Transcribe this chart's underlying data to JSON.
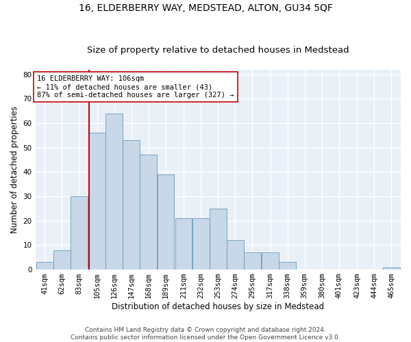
{
  "title": "16, ELDERBERRY WAY, MEDSTEAD, ALTON, GU34 5QF",
  "subtitle": "Size of property relative to detached houses in Medstead",
  "xlabel": "Distribution of detached houses by size in Medstead",
  "ylabel": "Number of detached properties",
  "bins": [
    41,
    62,
    83,
    105,
    126,
    147,
    168,
    189,
    211,
    232,
    253,
    274,
    295,
    317,
    338,
    359,
    380,
    401,
    423,
    444,
    465
  ],
  "counts": [
    3,
    8,
    30,
    56,
    64,
    53,
    47,
    39,
    21,
    21,
    25,
    12,
    7,
    7,
    3,
    0,
    0,
    0,
    0,
    0,
    1
  ],
  "bar_color": "#c8d8e8",
  "bar_edge_color": "#6699bb",
  "property_size": 106,
  "red_line_color": "#cc0000",
  "annotation_line1": "16 ELDERBERRY WAY: 106sqm",
  "annotation_line2": "← 11% of detached houses are smaller (43)",
  "annotation_line3": "87% of semi-detached houses are larger (327) →",
  "annotation_box_color": "white",
  "annotation_box_edge_color": "#cc0000",
  "ylim": [
    0,
    82
  ],
  "yticks": [
    0,
    10,
    20,
    30,
    40,
    50,
    60,
    70,
    80
  ],
  "footer_text": "Contains HM Land Registry data © Crown copyright and database right 2024.\nContains public sector information licensed under the Open Government Licence v3.0.",
  "background_color": "#eaf0f8",
  "grid_color": "white",
  "title_fontsize": 10,
  "subtitle_fontsize": 9.5,
  "label_fontsize": 8.5,
  "tick_fontsize": 7.5,
  "footer_fontsize": 6.5,
  "annot_fontsize": 7.5
}
